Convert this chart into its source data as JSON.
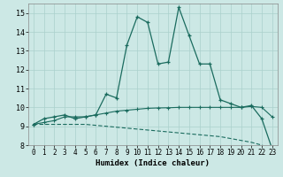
{
  "xlabel": "Humidex (Indice chaleur)",
  "bg_color": "#cce8e5",
  "grid_color": "#aad0cc",
  "line_color": "#1a6b5e",
  "xlim": [
    -0.5,
    23.5
  ],
  "ylim": [
    8,
    15.5
  ],
  "yticks": [
    8,
    9,
    10,
    11,
    12,
    13,
    14,
    15
  ],
  "xticks": [
    0,
    1,
    2,
    3,
    4,
    5,
    6,
    7,
    8,
    9,
    10,
    11,
    12,
    13,
    14,
    15,
    16,
    17,
    18,
    19,
    20,
    21,
    22,
    23
  ],
  "line1_x": [
    0,
    1,
    2,
    3,
    4,
    5,
    6,
    7,
    8,
    9,
    10,
    11,
    12,
    13,
    14,
    15,
    16,
    17,
    18,
    19,
    20,
    21,
    22,
    23
  ],
  "line1_y": [
    9.1,
    9.4,
    9.5,
    9.6,
    9.4,
    9.5,
    9.6,
    10.7,
    10.5,
    13.3,
    14.8,
    14.5,
    12.3,
    12.4,
    15.3,
    13.8,
    12.3,
    12.3,
    10.4,
    10.2,
    10.0,
    10.1,
    9.4,
    7.8
  ],
  "line2_x": [
    0,
    1,
    2,
    3,
    4,
    5,
    6,
    7,
    8,
    9,
    10,
    11,
    12,
    13,
    14,
    15,
    16,
    17,
    18,
    19,
    20,
    21,
    22,
    23
  ],
  "line2_y": [
    9.1,
    9.2,
    9.3,
    9.5,
    9.5,
    9.5,
    9.6,
    9.7,
    9.8,
    9.85,
    9.9,
    9.95,
    9.97,
    9.98,
    10.0,
    10.0,
    10.0,
    10.0,
    10.0,
    10.0,
    10.0,
    10.05,
    10.0,
    9.5
  ],
  "line3_x": [
    0,
    1,
    2,
    3,
    4,
    5,
    6,
    7,
    8,
    9,
    10,
    11,
    12,
    13,
    14,
    15,
    16,
    17,
    18,
    19,
    20,
    21,
    22,
    23
  ],
  "line3_y": [
    9.1,
    9.1,
    9.1,
    9.1,
    9.1,
    9.1,
    9.05,
    9.0,
    8.95,
    8.9,
    8.85,
    8.8,
    8.75,
    8.7,
    8.65,
    8.6,
    8.55,
    8.5,
    8.45,
    8.35,
    8.25,
    8.15,
    8.0,
    7.8
  ]
}
